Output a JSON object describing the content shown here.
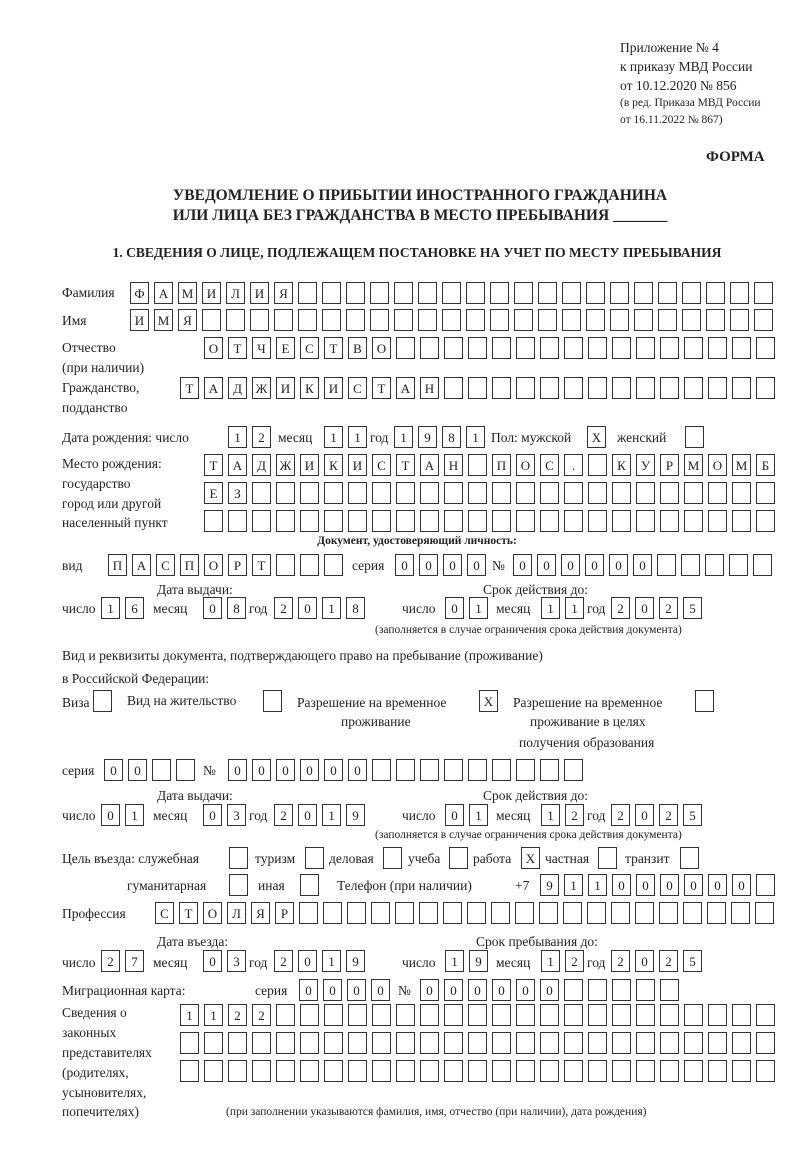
{
  "header": {
    "annex_lines": [
      "Приложение № 4",
      "к приказу МВД России",
      "от 10.12.2020 № 856"
    ],
    "edition_lines": [
      "(в ред. Приказа МВД России",
      "от 16.11.2022 № 867)"
    ],
    "form_label": "ФОРМА",
    "title_lines": [
      "УВЕДОМЛЕНИЕ О ПРИБЫТИИ ИНОСТРАННОГО ГРАЖДАНИНА",
      "ИЛИ ЛИЦА БЕЗ ГРАЖДАНСТВА В МЕСТО ПРЕБЫВАНИЯ _______"
    ],
    "section1": "1. СВЕДЕНИЯ О ЛИЦЕ, ПОДЛЕЖАЩЕМ ПОСТАНОВКЕ НА УЧЕТ ПО МЕСТУ ПРЕБЫВАНИЯ"
  },
  "person": {
    "surname_label": "Фамилия",
    "surname": "ФАМИЛИЯ",
    "name_label": "Имя",
    "name": "ИМЯ",
    "patronymic_label": "Отчество",
    "patronymic_note": "(при наличии)",
    "patronymic": "ОТЧЕСТВО",
    "citizenship_label": "Гражданство,",
    "citizenship_label2": "подданство",
    "citizenship": "ТАДЖИКИСТАН",
    "birth_label": "Дата рождения:  число",
    "birth_day": "12",
    "month_label": "месяц",
    "birth_month": "11",
    "year_label": "год",
    "birth_year": "1981",
    "sex_label": "Пол: мужской",
    "male": "X",
    "female_label": "женский",
    "female": "",
    "birthplace_labels": [
      "Место рождения:",
      "государство",
      "город или другой",
      "населенный пункт"
    ],
    "birthplace_rows": [
      "ТАДЖИКИСТАН ПОС. КУРМОМБ",
      "ЕЗ",
      ""
    ]
  },
  "id_doc": {
    "heading": "Документ, удостоверяющий личность:",
    "type_label": "вид",
    "type": "ПАСПОРТ",
    "series_label": "серия",
    "series": "0000",
    "number_label": "№",
    "number": "000000",
    "issue_label": "Дата выдачи:",
    "valid_label": "Срок действия до:",
    "day_label": "число",
    "month_label": "месяц",
    "year_label": "год",
    "issue_day": "16",
    "issue_month": "08",
    "issue_year": "2018",
    "valid_day": "01",
    "valid_month": "11",
    "valid_year": "2025",
    "note": "(заполняется в случае ограничения срока действия документа)"
  },
  "stay_doc": {
    "intro_line1": "Вид и реквизиты документа, подтверждающего право на пребывание (проживание)",
    "intro_line2": "в Российской Федерации:",
    "visa_label": "Виза",
    "visa": "",
    "residence_label": "Вид на жительство",
    "residence": "",
    "trp_label": [
      "Разрешение на временное",
      "проживание"
    ],
    "trp": "X",
    "trp_edu_label": [
      "Разрешение на временное",
      "проживание в целях",
      "получения образования"
    ],
    "trp_edu": "",
    "series_label": "серия",
    "series": "00",
    "number_label": "№",
    "number": "000000",
    "issue_label": "Дата выдачи:",
    "valid_label": "Срок действия до:",
    "day_label": "число",
    "month_label": "месяц",
    "year_label": "год",
    "issue_day": "01",
    "issue_month": "03",
    "issue_year": "2019",
    "valid_day": "01",
    "valid_month": "12",
    "valid_year": "2025",
    "note": "(заполняется в случае ограничения срока действия документа)"
  },
  "purpose": {
    "label": "Цель въезда: служебная",
    "official": "",
    "tourism_label": "туризм",
    "tourism": "",
    "business_label": "деловая",
    "business": "",
    "study_label": "учеба",
    "study": "",
    "work_label": "работа",
    "work": "X",
    "private_label": "частная",
    "private": "",
    "transit_label": "транзит",
    "transit": "",
    "humanitarian_label": "гуманитарная",
    "humanitarian": "",
    "other_label": "иная",
    "other": ""
  },
  "phone": {
    "label": "Телефон (при наличии)",
    "prefix": "+7",
    "value": "911000000"
  },
  "profession": {
    "label": "Профессия",
    "value": "СТОЛЯР"
  },
  "entry": {
    "entry_label": "Дата въезда:",
    "stay_label": "Срок пребывания до:",
    "day_label": "число",
    "month_label": "месяц",
    "year_label": "год",
    "entry_day": "27",
    "entry_month": "03",
    "entry_year": "2019",
    "stay_day": "19",
    "stay_month": "12",
    "stay_year": "2025"
  },
  "migration_card": {
    "label": "Миграционная карта:",
    "series_label": "серия",
    "series": "0000",
    "number_label": "№",
    "number": "000000"
  },
  "representatives": {
    "label_lines": [
      "Сведения о",
      "законных",
      "представителях",
      "(родителях,",
      "усыновителях,",
      "попечителях)"
    ],
    "rows": [
      "1122",
      "",
      ""
    ],
    "note": "(при заполнении указываются фамилия, имя, отчество (при наличии), дата рождения)"
  }
}
